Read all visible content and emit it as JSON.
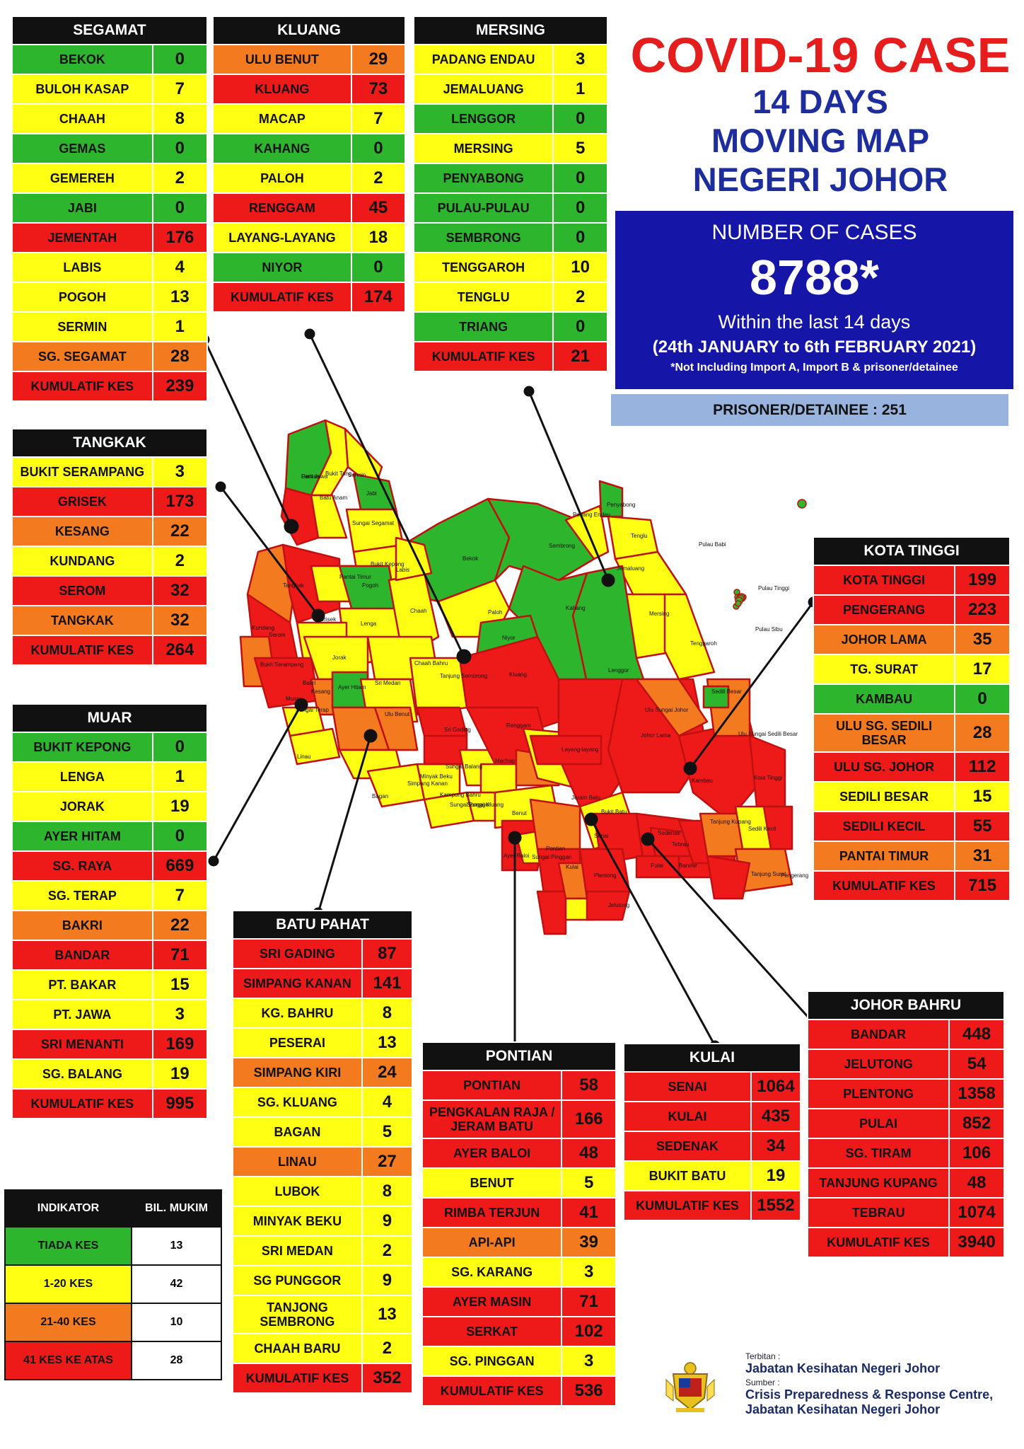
{
  "title": {
    "line1": "COVID-19 CASE",
    "line2": "14 DAYS",
    "line3": "MOVING MAP",
    "line4": "NEGERI JOHOR"
  },
  "summary": {
    "label": "NUMBER OF CASES",
    "total": "8788*",
    "within": "Within the last 14 days",
    "range": "(24th JANUARY to 6th FEBRUARY 2021)",
    "note": "*Not Including Import A, Import B & prisoner/detainee",
    "prisoner": "PRISONER/DETAINEE : 251"
  },
  "colors": {
    "green": "#2db62d",
    "yellow": "#ffff14",
    "orange": "#f47a20",
    "red": "#ee1a1a",
    "navy": "#1515a8"
  },
  "districts": {
    "segamat": {
      "name": "SEGAMAT",
      "rows": [
        {
          "n": "BEKOK",
          "v": "0",
          "c": "g"
        },
        {
          "n": "BULOH KASAP",
          "v": "7",
          "c": "y"
        },
        {
          "n": "CHAAH",
          "v": "8",
          "c": "y"
        },
        {
          "n": "GEMAS",
          "v": "0",
          "c": "g"
        },
        {
          "n": "GEMEREH",
          "v": "2",
          "c": "y"
        },
        {
          "n": "JABI",
          "v": "0",
          "c": "g"
        },
        {
          "n": "JEMENTAH",
          "v": "176",
          "c": "r"
        },
        {
          "n": "LABIS",
          "v": "4",
          "c": "y"
        },
        {
          "n": "POGOH",
          "v": "13",
          "c": "y"
        },
        {
          "n": "SERMIN",
          "v": "1",
          "c": "y"
        },
        {
          "n": "SG. SEGAMAT",
          "v": "28",
          "c": "o"
        },
        {
          "n": "KUMULATIF KES",
          "v": "239",
          "c": "r"
        }
      ]
    },
    "kluang": {
      "name": "KLUANG",
      "rows": [
        {
          "n": "ULU BENUT",
          "v": "29",
          "c": "o"
        },
        {
          "n": "KLUANG",
          "v": "73",
          "c": "r"
        },
        {
          "n": "MACAP",
          "v": "7",
          "c": "y"
        },
        {
          "n": "KAHANG",
          "v": "0",
          "c": "g"
        },
        {
          "n": "PALOH",
          "v": "2",
          "c": "y"
        },
        {
          "n": "RENGGAM",
          "v": "45",
          "c": "r"
        },
        {
          "n": "LAYANG-LAYANG",
          "v": "18",
          "c": "y"
        },
        {
          "n": "NIYOR",
          "v": "0",
          "c": "g"
        },
        {
          "n": "KUMULATIF KES",
          "v": "174",
          "c": "r"
        }
      ]
    },
    "mersing": {
      "name": "MERSING",
      "rows": [
        {
          "n": "PADANG ENDAU",
          "v": "3",
          "c": "y"
        },
        {
          "n": "JEMALUANG",
          "v": "1",
          "c": "y"
        },
        {
          "n": "LENGGOR",
          "v": "0",
          "c": "g"
        },
        {
          "n": "MERSING",
          "v": "5",
          "c": "y"
        },
        {
          "n": "PENYABONG",
          "v": "0",
          "c": "g"
        },
        {
          "n": "PULAU-PULAU",
          "v": "0",
          "c": "g"
        },
        {
          "n": "SEMBRONG",
          "v": "0",
          "c": "g"
        },
        {
          "n": "TENGGAROH",
          "v": "10",
          "c": "y"
        },
        {
          "n": "TENGLU",
          "v": "2",
          "c": "y"
        },
        {
          "n": "TRIANG",
          "v": "0",
          "c": "g"
        },
        {
          "n": "KUMULATIF KES",
          "v": "21",
          "c": "o"
        }
      ]
    },
    "tangkak": {
      "name": "TANGKAK",
      "rows": [
        {
          "n": "BUKIT SERAMPANG",
          "v": "3",
          "c": "y"
        },
        {
          "n": "GRISEK",
          "v": "173",
          "c": "r"
        },
        {
          "n": "KESANG",
          "v": "22",
          "c": "o"
        },
        {
          "n": "KUNDANG",
          "v": "2",
          "c": "y"
        },
        {
          "n": "SEROM",
          "v": "32",
          "c": "r"
        },
        {
          "n": "TANGKAK",
          "v": "32",
          "c": "o"
        },
        {
          "n": "KUMULATIF KES",
          "v": "264",
          "c": "r"
        }
      ]
    },
    "muar": {
      "name": "MUAR",
      "rows": [
        {
          "n": "BUKIT KEPONG",
          "v": "0",
          "c": "g"
        },
        {
          "n": "LENGA",
          "v": "1",
          "c": "y"
        },
        {
          "n": "JORAK",
          "v": "19",
          "c": "y"
        },
        {
          "n": "AYER HITAM",
          "v": "0",
          "c": "g"
        },
        {
          "n": "SG. RAYA",
          "v": "669",
          "c": "r"
        },
        {
          "n": "SG. TERAP",
          "v": "7",
          "c": "y"
        },
        {
          "n": "BAKRI",
          "v": "22",
          "c": "o"
        },
        {
          "n": "BANDAR",
          "v": "71",
          "c": "r"
        },
        {
          "n": "PT. BAKAR",
          "v": "15",
          "c": "y"
        },
        {
          "n": "PT. JAWA",
          "v": "3",
          "c": "y"
        },
        {
          "n": "SRI MENANTI",
          "v": "169",
          "c": "r"
        },
        {
          "n": "SG. BALANG",
          "v": "19",
          "c": "y"
        },
        {
          "n": "KUMULATIF KES",
          "v": "995",
          "c": "r"
        }
      ]
    },
    "kota_tinggi": {
      "name": "KOTA TINGGI",
      "rows": [
        {
          "n": "KOTA TINGGI",
          "v": "199",
          "c": "r"
        },
        {
          "n": "PENGERANG",
          "v": "223",
          "c": "r"
        },
        {
          "n": "JOHOR LAMA",
          "v": "35",
          "c": "o"
        },
        {
          "n": "TG. SURAT",
          "v": "17",
          "c": "y"
        },
        {
          "n": "KAMBAU",
          "v": "0",
          "c": "g"
        },
        {
          "n": "ULU SG. SEDILI BESAR",
          "v": "28",
          "c": "o"
        },
        {
          "n": "ULU  SG. JOHOR",
          "v": "112",
          "c": "r"
        },
        {
          "n": "SEDILI BESAR",
          "v": "15",
          "c": "y"
        },
        {
          "n": "SEDILI KECIL",
          "v": "55",
          "c": "r"
        },
        {
          "n": "PANTAI TIMUR",
          "v": "31",
          "c": "o"
        },
        {
          "n": "KUMULATIF KES",
          "v": "715",
          "c": "r"
        }
      ]
    },
    "batu_pahat": {
      "name": "BATU PAHAT",
      "rows": [
        {
          "n": "SRI GADING",
          "v": "87",
          "c": "r"
        },
        {
          "n": "SIMPANG KANAN",
          "v": "141",
          "c": "r"
        },
        {
          "n": "KG. BAHRU",
          "v": "8",
          "c": "y"
        },
        {
          "n": "PESERAI",
          "v": "13",
          "c": "y"
        },
        {
          "n": "SIMPANG KIRI",
          "v": "24",
          "c": "o"
        },
        {
          "n": "SG. KLUANG",
          "v": "4",
          "c": "y"
        },
        {
          "n": "BAGAN",
          "v": "5",
          "c": "y"
        },
        {
          "n": "LINAU",
          "v": "27",
          "c": "o"
        },
        {
          "n": "LUBOK",
          "v": "8",
          "c": "y"
        },
        {
          "n": "MINYAK BEKU",
          "v": "9",
          "c": "y"
        },
        {
          "n": "SRI MEDAN",
          "v": "2",
          "c": "y"
        },
        {
          "n": "SG PUNGGOR",
          "v": "9",
          "c": "y"
        },
        {
          "n": "TANJONG SEMBRONG",
          "v": "13",
          "c": "y"
        },
        {
          "n": "CHAAH BARU",
          "v": "2",
          "c": "y"
        },
        {
          "n": "KUMULATIF KES",
          "v": "352",
          "c": "r"
        }
      ]
    },
    "pontian": {
      "name": "PONTIAN",
      "rows": [
        {
          "n": "PONTIAN",
          "v": "58",
          "c": "r"
        },
        {
          "n": "PENGKALAN RAJA / JERAM BATU",
          "v": "166",
          "c": "r"
        },
        {
          "n": "AYER BALOI",
          "v": "48",
          "c": "r"
        },
        {
          "n": "BENUT",
          "v": "5",
          "c": "y"
        },
        {
          "n": "RIMBA TERJUN",
          "v": "41",
          "c": "r"
        },
        {
          "n": "API-API",
          "v": "39",
          "c": "o"
        },
        {
          "n": "SG. KARANG",
          "v": "3",
          "c": "y"
        },
        {
          "n": "AYER MASIN",
          "v": "71",
          "c": "r"
        },
        {
          "n": "SERKAT",
          "v": "102",
          "c": "r"
        },
        {
          "n": "SG. PINGGAN",
          "v": "3",
          "c": "y"
        },
        {
          "n": "KUMULATIF KES",
          "v": "536",
          "c": "r"
        }
      ]
    },
    "kulai": {
      "name": "KULAI",
      "rows": [
        {
          "n": "SENAI",
          "v": "1064",
          "c": "r"
        },
        {
          "n": "KULAI",
          "v": "435",
          "c": "r"
        },
        {
          "n": "SEDENAK",
          "v": "34",
          "c": "r"
        },
        {
          "n": "BUKIT BATU",
          "v": "19",
          "c": "y"
        },
        {
          "n": "KUMULATIF KES",
          "v": "1552",
          "c": "r"
        }
      ]
    },
    "johor_bahru": {
      "name": "JOHOR BAHRU",
      "rows": [
        {
          "n": "BANDAR",
          "v": "448",
          "c": "r"
        },
        {
          "n": "JELUTONG",
          "v": "54",
          "c": "r"
        },
        {
          "n": "PLENTONG",
          "v": "1358",
          "c": "r"
        },
        {
          "n": "PULAI",
          "v": "852",
          "c": "r"
        },
        {
          "n": "SG. TIRAM",
          "v": "106",
          "c": "r"
        },
        {
          "n": "TANJUNG KUPANG",
          "v": "48",
          "c": "r"
        },
        {
          "n": "TEBRAU",
          "v": "1074",
          "c": "r"
        },
        {
          "n": "KUMULATIF KES",
          "v": "3940",
          "c": "r"
        }
      ]
    }
  },
  "legend": {
    "headers": [
      "INDIKATOR",
      "BIL. MUKIM"
    ],
    "rows": [
      {
        "label": "TIADA KES",
        "count": "13",
        "c": "g"
      },
      {
        "label": "1-20 KES",
        "count": "42",
        "c": "y"
      },
      {
        "label": "21-40 KES",
        "count": "10",
        "c": "o"
      },
      {
        "label": "41 KES KE ATAS",
        "count": "28",
        "c": "r"
      }
    ]
  },
  "map_labels": [
    "Gemas",
    "Bukit Tang",
    "Batu Anam",
    "Sermin",
    "Jabi",
    "Sungai Segamat",
    "Pogoh",
    "Bekok",
    "Sembrong",
    "Padang Endau",
    "Penyabong",
    "Tenglu",
    "Pulau Babi",
    "Pulau Tinggi",
    "Pulau Sibu",
    "Jemaluang",
    "Mersing",
    "Tenggaroh",
    "Lenggor",
    "Kahang",
    "Paloh",
    "Niyor",
    "Chaah",
    "Labis",
    "Bukit Kepong",
    "Lenga",
    "Tangkak",
    "Grisek",
    "Serom",
    "Kundang",
    "Jorak",
    "Ayer Hitam",
    "Chaah Bahru",
    "Sri Medan",
    "Tanjung Sembrong",
    "Kluang",
    "Renggam",
    "Sri Gading",
    "Layang-layang",
    "Machap",
    "Ulu Benut",
    "Linau",
    "Sungai Balang",
    "Simpang Kanan",
    "Bagan",
    "Minyak Beku",
    "Kampung Bahru",
    "Sungai Punggor",
    "Sungai Kluang",
    "Benut",
    "Sungai Pinggan",
    "Ayer Baloi",
    "Pontian",
    "Jeram Batu",
    "Bukit Batu",
    "Senai",
    "Kulai",
    "Sedenak",
    "Tebrau",
    "Plentong",
    "Pulai",
    "Bandar",
    "Jelutong",
    "Tanjung Kupang",
    "Johor Lama",
    "Ulu Sungai Johor",
    "Ulu Sungai Sedili Besar",
    "Sedili Besar",
    "Kambau",
    "Kota Tinggi",
    "Sedili Kecil",
    "Tanjung Surat",
    "Pengerang",
    "Pantai Timur",
    "Bukit Serampang",
    "Kesang",
    "Bakri",
    "Muar",
    "Sungai Terap",
    "Parit Jawa"
  ],
  "footer": {
    "terbitan_label": "Terbitan :",
    "publisher": "Jabatan Kesihatan Negeri Johor",
    "sumber_label": "Sumber :",
    "source1": "Crisis Preparedness & Response Centre,",
    "source2": "Jabatan Kesihatan Negeri Johor"
  }
}
